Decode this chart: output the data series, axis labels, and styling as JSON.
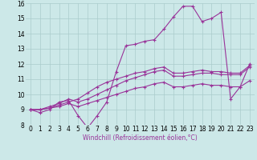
{
  "xlabel": "Windchill (Refroidissement éolien,°C)",
  "x_values": [
    0,
    1,
    2,
    3,
    4,
    5,
    6,
    7,
    8,
    9,
    10,
    11,
    12,
    13,
    14,
    15,
    16,
    17,
    18,
    19,
    20,
    21,
    22,
    23
  ],
  "line1": [
    9.0,
    8.8,
    9.0,
    9.5,
    9.6,
    8.6,
    7.8,
    8.6,
    9.5,
    11.5,
    13.2,
    13.3,
    13.5,
    13.6,
    14.3,
    15.1,
    15.8,
    15.8,
    14.8,
    15.0,
    15.4,
    9.7,
    10.5,
    12.0
  ],
  "line2": [
    9.0,
    9.0,
    9.1,
    9.3,
    9.5,
    9.7,
    10.1,
    10.5,
    10.8,
    11.0,
    11.2,
    11.4,
    11.5,
    11.7,
    11.8,
    11.4,
    11.4,
    11.5,
    11.6,
    11.5,
    11.5,
    11.4,
    11.4,
    11.9
  ],
  "line3": [
    9.0,
    9.0,
    9.2,
    9.4,
    9.7,
    9.5,
    9.7,
    10.0,
    10.3,
    10.6,
    10.9,
    11.1,
    11.3,
    11.5,
    11.6,
    11.2,
    11.2,
    11.3,
    11.4,
    11.4,
    11.3,
    11.3,
    11.3,
    11.8
  ],
  "line4": [
    9.0,
    9.0,
    9.1,
    9.2,
    9.4,
    9.2,
    9.4,
    9.6,
    9.8,
    10.0,
    10.2,
    10.4,
    10.5,
    10.7,
    10.8,
    10.5,
    10.5,
    10.6,
    10.7,
    10.6,
    10.6,
    10.5,
    10.5,
    10.9
  ],
  "line_color": "#993399",
  "bg_color": "#cce8e8",
  "grid_color": "#aacccc",
  "ylim": [
    8,
    16
  ],
  "xlim": [
    -0.5,
    23.5
  ],
  "yticks": [
    8,
    9,
    10,
    11,
    12,
    13,
    14,
    15,
    16
  ],
  "xticks": [
    0,
    1,
    2,
    3,
    4,
    5,
    6,
    7,
    8,
    9,
    10,
    11,
    12,
    13,
    14,
    15,
    16,
    17,
    18,
    19,
    20,
    21,
    22,
    23
  ],
  "marker": "+",
  "linewidth": 0.8,
  "markersize": 3,
  "tick_fontsize": 5.5,
  "xlabel_fontsize": 5.5
}
